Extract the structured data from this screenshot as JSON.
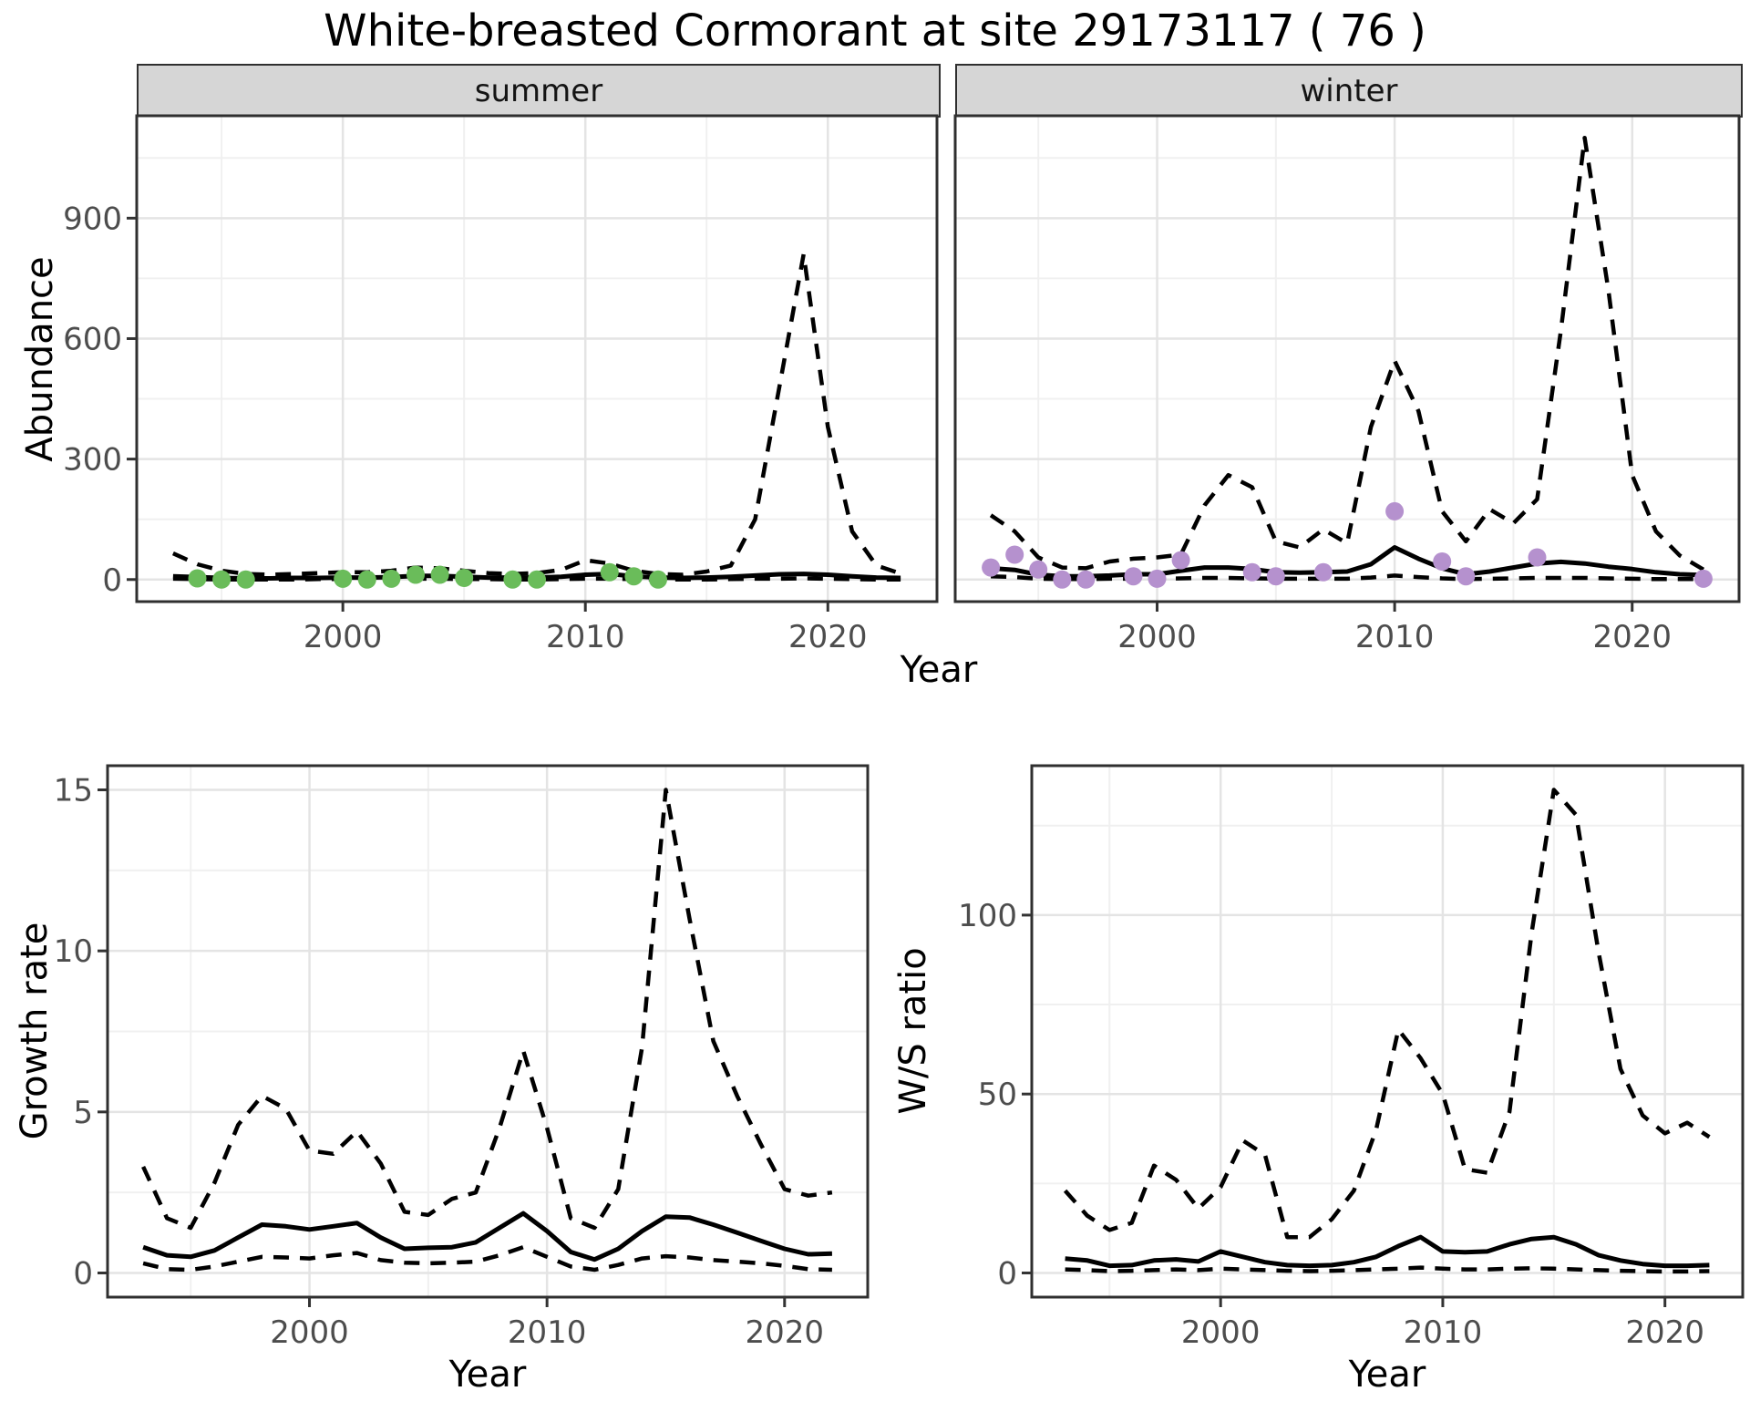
{
  "title": "White-breasted Cormorant at site 29173117 ( 76 )",
  "colors": {
    "summer_point": "#6abc5a",
    "winter_point": "#b591ce",
    "line": "#000000",
    "grid_major": "#e4e4e4",
    "grid_minor": "#f0f0f0",
    "strip_bg": "#d6d6d6",
    "panel_border": "#2f2f2f",
    "tick_text": "#4d4d4d",
    "tick_mark": "#333333"
  },
  "chart_data": [
    {
      "id": "abundance-summer",
      "type": "line",
      "facet_label": "summer",
      "xlabel": "Year",
      "ylabel": "Abundance",
      "xlim": [
        1991.5,
        2024.5
      ],
      "ylim": [
        -55,
        1155
      ],
      "xticks": [
        2000,
        2010,
        2020
      ],
      "xminor": [
        1995,
        2005,
        2015
      ],
      "yticks": [
        0,
        300,
        600,
        900
      ],
      "yminor": [
        150,
        450,
        750,
        1050
      ],
      "x": [
        1993,
        1994,
        1995,
        1996,
        1997,
        1998,
        1999,
        2000,
        2001,
        2002,
        2003,
        2004,
        2005,
        2006,
        2007,
        2008,
        2009,
        2010,
        2011,
        2012,
        2013,
        2014,
        2015,
        2016,
        2017,
        2018,
        2019,
        2020,
        2021,
        2022,
        2023
      ],
      "series": [
        {
          "name": "median",
          "style": "solid",
          "values": [
            8,
            6,
            4,
            3,
            3,
            4,
            4,
            5,
            5,
            6,
            9,
            9,
            7,
            5,
            5,
            5,
            7,
            12,
            14,
            8,
            5,
            4,
            5,
            7,
            10,
            13,
            14,
            12,
            8,
            5,
            4
          ]
        },
        {
          "name": "lower_ci",
          "style": "dashed",
          "values": [
            2,
            1,
            0,
            0,
            0,
            0,
            1,
            1,
            1,
            1,
            2,
            2,
            1,
            1,
            0,
            0,
            1,
            2,
            2,
            1,
            0,
            0,
            0,
            1,
            2,
            2,
            3,
            2,
            1,
            0,
            0
          ]
        },
        {
          "name": "upper_ci",
          "style": "dashed",
          "values": [
            65,
            38,
            22,
            14,
            12,
            14,
            16,
            18,
            18,
            22,
            30,
            28,
            22,
            16,
            14,
            16,
            24,
            48,
            40,
            22,
            14,
            12,
            20,
            35,
            150,
            480,
            810,
            380,
            120,
            35,
            15
          ]
        }
      ],
      "points": {
        "name": "observed-counts-summer",
        "color_key": "summer_point",
        "x": [
          1994,
          1995,
          1996,
          2000,
          2001,
          2002,
          2003,
          2004,
          2005,
          2007,
          2008,
          2011,
          2012,
          2013
        ],
        "y": [
          3,
          0,
          0,
          2,
          0,
          2,
          12,
          12,
          4,
          0,
          0,
          18,
          8,
          0
        ]
      }
    },
    {
      "id": "abundance-winter",
      "type": "line",
      "facet_label": "winter",
      "xlabel": "Year",
      "ylabel": "Abundance",
      "xlim": [
        1991.5,
        2024.5
      ],
      "ylim": [
        -55,
        1155
      ],
      "xticks": [
        2000,
        2010,
        2020
      ],
      "xminor": [
        1995,
        2005,
        2015
      ],
      "yticks": [
        0,
        300,
        600,
        900
      ],
      "yminor": [
        150,
        450,
        750,
        1050
      ],
      "x": [
        1993,
        1994,
        1995,
        1996,
        1997,
        1998,
        1999,
        2000,
        2001,
        2002,
        2003,
        2004,
        2005,
        2006,
        2007,
        2008,
        2009,
        2010,
        2011,
        2012,
        2013,
        2014,
        2015,
        2016,
        2017,
        2018,
        2019,
        2020,
        2021,
        2022,
        2023
      ],
      "series": [
        {
          "name": "median",
          "style": "solid",
          "values": [
            28,
            24,
            12,
            8,
            8,
            10,
            13,
            13,
            22,
            30,
            30,
            26,
            18,
            17,
            18,
            20,
            38,
            80,
            52,
            28,
            13,
            20,
            30,
            40,
            44,
            40,
            32,
            26,
            18,
            13,
            11
          ]
        },
        {
          "name": "lower_ci",
          "style": "dashed",
          "values": [
            8,
            6,
            2,
            1,
            1,
            2,
            2,
            2,
            3,
            4,
            4,
            3,
            2,
            2,
            2,
            2,
            5,
            10,
            6,
            3,
            1,
            2,
            3,
            4,
            4,
            4,
            3,
            2,
            1,
            1,
            1
          ]
        },
        {
          "name": "upper_ci",
          "style": "dashed",
          "values": [
            160,
            120,
            55,
            30,
            28,
            45,
            52,
            55,
            62,
            185,
            260,
            230,
            95,
            80,
            125,
            90,
            380,
            545,
            420,
            170,
            95,
            175,
            140,
            200,
            620,
            1100,
            720,
            260,
            120,
            60,
            25
          ]
        }
      ],
      "points": {
        "name": "observed-counts-winter",
        "color_key": "winter_point",
        "x": [
          1993,
          1994,
          1995,
          1996,
          1997,
          1999,
          2000,
          2001,
          2004,
          2005,
          2007,
          2010,
          2012,
          2013,
          2016,
          2023
        ],
        "y": [
          30,
          62,
          25,
          0,
          0,
          8,
          2,
          48,
          18,
          8,
          18,
          170,
          45,
          8,
          55,
          2
        ]
      }
    },
    {
      "id": "growth-rate",
      "type": "line",
      "facet_label": "",
      "xlabel": "Year",
      "ylabel": "Growth rate",
      "xlim": [
        1991.5,
        2023.5
      ],
      "ylim": [
        -0.75,
        15.75
      ],
      "xticks": [
        2000,
        2010,
        2020
      ],
      "xminor": [
        1995,
        2005,
        2015
      ],
      "yticks": [
        0,
        5,
        10,
        15
      ],
      "yminor": [
        2.5,
        7.5,
        12.5
      ],
      "x": [
        1993,
        1994,
        1995,
        1996,
        1997,
        1998,
        1999,
        2000,
        2001,
        2002,
        2003,
        2004,
        2005,
        2006,
        2007,
        2008,
        2009,
        2010,
        2011,
        2012,
        2013,
        2014,
        2015,
        2016,
        2017,
        2018,
        2019,
        2020,
        2021,
        2022
      ],
      "series": [
        {
          "name": "median",
          "style": "solid",
          "values": [
            0.8,
            0.55,
            0.5,
            0.7,
            1.1,
            1.5,
            1.45,
            1.35,
            1.45,
            1.55,
            1.1,
            0.75,
            0.78,
            0.8,
            0.95,
            1.4,
            1.85,
            1.3,
            0.65,
            0.42,
            0.75,
            1.3,
            1.75,
            1.72,
            1.5,
            1.25,
            1.0,
            0.75,
            0.58,
            0.6
          ]
        },
        {
          "name": "lower_ci",
          "style": "dashed",
          "values": [
            0.3,
            0.12,
            0.1,
            0.2,
            0.35,
            0.5,
            0.48,
            0.45,
            0.55,
            0.62,
            0.4,
            0.32,
            0.3,
            0.32,
            0.35,
            0.55,
            0.8,
            0.5,
            0.2,
            0.1,
            0.25,
            0.45,
            0.52,
            0.48,
            0.4,
            0.35,
            0.3,
            0.22,
            0.12,
            0.1
          ]
        },
        {
          "name": "upper_ci",
          "style": "dashed",
          "values": [
            3.3,
            1.7,
            1.4,
            2.8,
            4.6,
            5.5,
            5.1,
            3.8,
            3.7,
            4.4,
            3.4,
            1.9,
            1.8,
            2.3,
            2.5,
            4.5,
            6.9,
            4.5,
            1.7,
            1.4,
            2.6,
            7.0,
            15.0,
            11.0,
            7.2,
            5.5,
            4.0,
            2.6,
            2.4,
            2.5
          ]
        }
      ],
      "points": null
    },
    {
      "id": "ws-ratio",
      "type": "line",
      "facet_label": "",
      "xlabel": "Year",
      "ylabel": "W/S ratio",
      "xlim": [
        1991.5,
        2023.5
      ],
      "ylim": [
        -6.75,
        141.75
      ],
      "xticks": [
        2000,
        2010,
        2020
      ],
      "xminor": [
        1995,
        2005,
        2015
      ],
      "yticks": [
        0,
        50,
        100
      ],
      "yminor": [
        25,
        75,
        125
      ],
      "x": [
        1993,
        1994,
        1995,
        1996,
        1997,
        1998,
        1999,
        2000,
        2001,
        2002,
        2003,
        2004,
        2005,
        2006,
        2007,
        2008,
        2009,
        2010,
        2011,
        2012,
        2013,
        2014,
        2015,
        2016,
        2017,
        2018,
        2019,
        2020,
        2021,
        2022
      ],
      "series": [
        {
          "name": "median",
          "style": "solid",
          "values": [
            4,
            3.5,
            2,
            2.2,
            3.5,
            3.8,
            3.2,
            6,
            4.5,
            3,
            2.2,
            2,
            2.2,
            3,
            4.5,
            7.5,
            10,
            6,
            5.8,
            6,
            8,
            9.5,
            10,
            8,
            5,
            3.5,
            2.5,
            2,
            2,
            2.2
          ]
        },
        {
          "name": "lower_ci",
          "style": "dashed",
          "values": [
            1,
            0.8,
            0.5,
            0.6,
            0.8,
            1,
            0.8,
            1.2,
            1,
            0.8,
            0.6,
            0.5,
            0.6,
            0.8,
            1,
            1.2,
            1.5,
            1.2,
            1,
            1,
            1.2,
            1.3,
            1.2,
            1,
            0.8,
            0.6,
            0.5,
            0.4,
            0.4,
            0.5
          ]
        },
        {
          "name": "upper_ci",
          "style": "dashed",
          "values": [
            23,
            16,
            12,
            14,
            30,
            26,
            18,
            24,
            37,
            33,
            10,
            10,
            15,
            23,
            40,
            68,
            60,
            50,
            29,
            28,
            45,
            95,
            135,
            128,
            90,
            57,
            44,
            39,
            42,
            38
          ]
        }
      ],
      "points": null
    }
  ]
}
